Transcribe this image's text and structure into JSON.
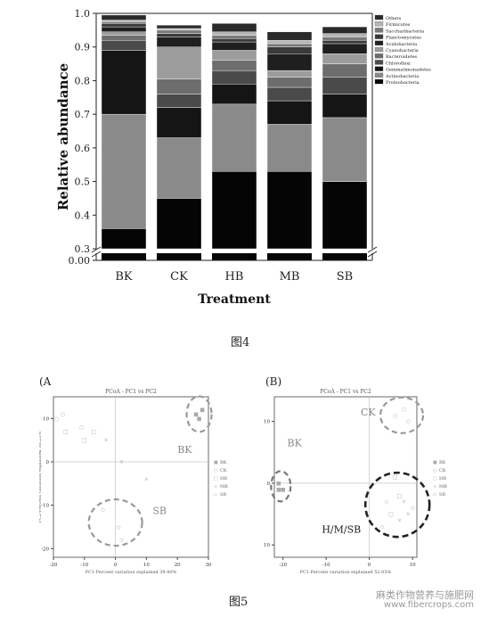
{
  "figure4": {
    "caption": "图4",
    "chart_data": {
      "type": "bar",
      "stacked": true,
      "xlabel": "Treatment",
      "ylabel": "Relative abundance",
      "ylim": [
        0.3,
        1.0
      ],
      "axis_break": [
        0.0,
        0.3
      ],
      "yticks": [
        "0.00",
        "0.3",
        "0.4",
        "0.5",
        "0.6",
        "0.7",
        "0.8",
        "0.9",
        "1.0"
      ],
      "categories": [
        "BK",
        "CK",
        "HB",
        "MB",
        "SB"
      ],
      "legend_position": "right",
      "series": [
        {
          "name": "Proteobacteria",
          "color": "#050505",
          "values": [
            0.36,
            0.45,
            0.53,
            0.53,
            0.5
          ]
        },
        {
          "name": "Actinobacteria",
          "color": "#8a8a8a",
          "values": [
            0.34,
            0.18,
            0.2,
            0.14,
            0.19
          ]
        },
        {
          "name": "Gemmatimonadetes",
          "color": "#151515",
          "values": [
            0.19,
            0.09,
            0.06,
            0.07,
            0.07
          ]
        },
        {
          "name": "Chloroflexi",
          "color": "#4a4a4a",
          "values": [
            0.03,
            0.04,
            0.04,
            0.04,
            0.05
          ]
        },
        {
          "name": "Bacteroidetes",
          "color": "#6d6d6d",
          "values": [
            0.015,
            0.045,
            0.03,
            0.03,
            0.04
          ]
        },
        {
          "name": "Cyanobacteria",
          "color": "#9c9c9c",
          "values": [
            0.01,
            0.095,
            0.03,
            0.02,
            0.03
          ]
        },
        {
          "name": "Acidobacteria",
          "color": "#1f1f1f",
          "values": [
            0.015,
            0.03,
            0.025,
            0.05,
            0.03
          ]
        },
        {
          "name": "Planctomycetes",
          "color": "#3a3a3a",
          "values": [
            0.01,
            0.01,
            0.01,
            0.02,
            0.01
          ]
        },
        {
          "name": "Saccharibacteria",
          "color": "#7a7a7a",
          "values": [
            0.005,
            0.01,
            0.01,
            0.01,
            0.01
          ]
        },
        {
          "name": "Firmicutes",
          "color": "#b5b5b5",
          "values": [
            0.005,
            0.005,
            0.01,
            0.01,
            0.01
          ]
        },
        {
          "name": "Others",
          "color": "#2a2a2a",
          "values": [
            0.015,
            0.01,
            0.025,
            0.025,
            0.02
          ]
        }
      ]
    }
  },
  "figure5": {
    "caption": "图5",
    "panels": [
      {
        "panel_label": "(A",
        "chart_data": {
          "type": "scatter",
          "title": "PCoA - PC1 vs PC2",
          "xlabel": "PC1-Percent variation explained 39.40%",
          "ylabel": "PC2-Percent variation explained 30.25%",
          "xlim": [
            -20,
            30
          ],
          "ylim": [
            -22,
            15
          ],
          "xticks": [
            "-20",
            "-10",
            "0",
            "10",
            "20",
            "30"
          ],
          "yticks": [
            "-20",
            "-10",
            "0",
            "10"
          ],
          "legend": [
            "BK",
            "CK",
            "HB",
            "MB",
            "SB"
          ],
          "legend_position": "right",
          "group_labels": [
            {
              "text": "BK",
              "x": 20,
              "y": 2
            },
            {
              "text": "SB",
              "x": 12,
              "y": -12
            }
          ],
          "points": [
            {
              "group": "BK",
              "x": 26,
              "y": 11
            },
            {
              "group": "BK",
              "x": 27,
              "y": 10
            },
            {
              "group": "BK",
              "x": 28,
              "y": 12
            },
            {
              "group": "CK",
              "x": -19,
              "y": 10
            },
            {
              "group": "CK",
              "x": -17,
              "y": 11
            },
            {
              "group": "CK",
              "x": -11,
              "y": 8
            },
            {
              "group": "HB",
              "x": -16,
              "y": 7
            },
            {
              "group": "HB",
              "x": -10,
              "y": 5
            },
            {
              "group": "HB",
              "x": -7,
              "y": 7
            },
            {
              "group": "MB",
              "x": -3,
              "y": 5
            },
            {
              "group": "MB",
              "x": 2,
              "y": 0
            },
            {
              "group": "MB",
              "x": 10,
              "y": -4
            },
            {
              "group": "SB",
              "x": -4,
              "y": -11
            },
            {
              "group": "SB",
              "x": 1,
              "y": -15
            },
            {
              "group": "SB",
              "x": 2,
              "y": -18
            }
          ]
        }
      },
      {
        "panel_label": "(B)",
        "chart_data": {
          "type": "scatter",
          "title": "PCoA - PC1 vs PC2",
          "xlabel": "PC1-Percent variation explained 52.05%",
          "ylabel": "PC2-Percent variation explained 21.40%",
          "xlim": [
            -22,
            11
          ],
          "ylim": [
            -12,
            14
          ],
          "xticks": [
            "-20",
            "-10",
            "0",
            "10"
          ],
          "yticks": [
            "-10",
            "0",
            "10"
          ],
          "legend": [
            "BK",
            "CK",
            "HB",
            "MB",
            "SB"
          ],
          "legend_position": "right",
          "group_labels": [
            {
              "text": "CK",
              "x": -2,
              "y": 11
            },
            {
              "text": "BK",
              "x": -19,
              "y": 6
            },
            {
              "text": "H/M/SB",
              "x": -11,
              "y": -8
            }
          ],
          "points": [
            {
              "group": "CK",
              "x": 6,
              "y": 11
            },
            {
              "group": "CK",
              "x": 8,
              "y": 12
            },
            {
              "group": "CK",
              "x": 9,
              "y": 10
            },
            {
              "group": "BK",
              "x": -21,
              "y": 0
            },
            {
              "group": "BK",
              "x": -20,
              "y": -1
            },
            {
              "group": "BK",
              "x": -21,
              "y": -1
            },
            {
              "group": "HB",
              "x": 6,
              "y": 1
            },
            {
              "group": "HB",
              "x": 7,
              "y": -2
            },
            {
              "group": "HB",
              "x": 5,
              "y": -5
            },
            {
              "group": "MB",
              "x": 8,
              "y": -3
            },
            {
              "group": "MB",
              "x": 9,
              "y": -5
            },
            {
              "group": "MB",
              "x": 7,
              "y": -6
            },
            {
              "group": "SB",
              "x": 4,
              "y": -3
            },
            {
              "group": "SB",
              "x": 3,
              "y": -7
            },
            {
              "group": "SB",
              "x": 10,
              "y": -4
            }
          ]
        }
      }
    ]
  },
  "watermark": {
    "line1": "麻类作物营养与施肥网",
    "line2": "www.fibercrops.com"
  }
}
